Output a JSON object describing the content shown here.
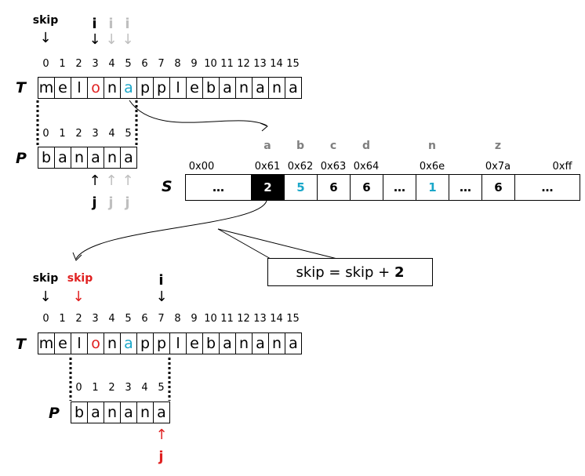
{
  "top": {
    "skip_label": "skip",
    "i_labels": [
      "i",
      "i",
      "i"
    ],
    "indices": [
      "0",
      "1",
      "2",
      "3",
      "4",
      "5",
      "6",
      "7",
      "8",
      "9",
      "10",
      "11",
      "12",
      "13",
      "14",
      "15"
    ],
    "T_label": "T",
    "T_chars": [
      "m",
      "e",
      "l",
      "o",
      "n",
      "a",
      "p",
      "p",
      "l",
      "e",
      "b",
      "a",
      "n",
      "a",
      "n",
      "a"
    ],
    "P_label": "P",
    "P_indices": [
      "0",
      "1",
      "2",
      "3",
      "4",
      "5"
    ],
    "P_chars": [
      "b",
      "a",
      "n",
      "a",
      "n",
      "a"
    ],
    "j_labels": [
      "j",
      "j",
      "j"
    ]
  },
  "table": {
    "S_label": "S",
    "letters": [
      "a",
      "b",
      "c",
      "d",
      "n",
      "z"
    ],
    "hex": [
      "0x00",
      "0x61",
      "0x62",
      "0x63",
      "0x64",
      "0x6e",
      "0x7a",
      "0xff"
    ],
    "cells": [
      "…",
      "2",
      "5",
      "6",
      "6",
      "…",
      "1",
      "…",
      "6",
      "…"
    ]
  },
  "formula": {
    "prefix": "skip = skip + ",
    "value": "2"
  },
  "bottom": {
    "skip_label": "skip",
    "skip_label_red": "skip",
    "i_label": "i",
    "indices": [
      "0",
      "1",
      "2",
      "3",
      "4",
      "5",
      "6",
      "7",
      "8",
      "9",
      "10",
      "11",
      "12",
      "13",
      "14",
      "15"
    ],
    "T_label": "T",
    "T_chars": [
      "m",
      "e",
      "l",
      "o",
      "n",
      "a",
      "p",
      "p",
      "l",
      "e",
      "b",
      "a",
      "n",
      "a",
      "n",
      "a"
    ],
    "P_label": "P",
    "P_indices": [
      "0",
      "1",
      "2",
      "3",
      "4",
      "5"
    ],
    "P_chars": [
      "b",
      "a",
      "n",
      "a",
      "n",
      "a"
    ],
    "j_label": "j"
  },
  "colors": {
    "red": "#e02020",
    "cyan": "#1aa7c9",
    "gray": "#bfbfbf",
    "dark": "#000000"
  }
}
